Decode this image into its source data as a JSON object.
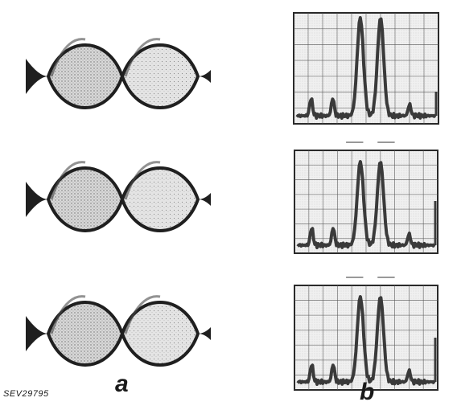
{
  "figure": {
    "reference": "SEV29795",
    "panel_a_label": "a",
    "panel_b_label": "b"
  },
  "panel_a": {
    "rows": 3,
    "lobes_per_row": 2
  },
  "panel_b": {
    "spectra": 3,
    "colors": {
      "trace": "#3a3a3a",
      "grid": "#555555",
      "paper": "#ececec"
    }
  },
  "colors": {
    "ink": "#1f1f1f",
    "stipple": "#9a9a9a",
    "background": "#ffffff"
  }
}
